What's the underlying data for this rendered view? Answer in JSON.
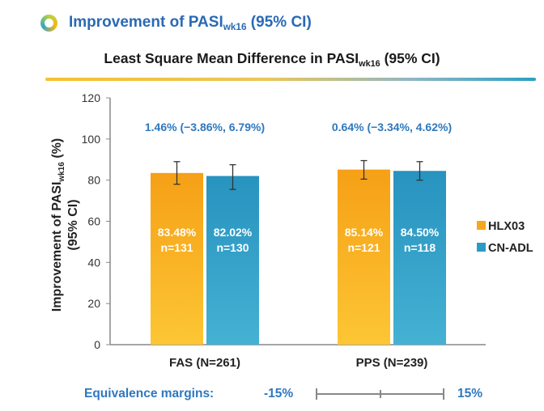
{
  "header": {
    "title_prefix": "Improvement of PASI",
    "title_sub": "wk16",
    "title_suffix": " (95% CI)"
  },
  "chart_data": {
    "type": "bar",
    "title": {
      "prefix": "Least Square Mean Difference in PASI",
      "sub": "wk16",
      "suffix": " (95% CI)"
    },
    "ylabel": {
      "prefix": "Improvement of PASI",
      "sub": "wk16",
      "suffix": " (%)",
      "line2": "(95% CI)"
    },
    "xlabel": "",
    "ylim": [
      0,
      120
    ],
    "yticks": [
      "0",
      "20",
      "40",
      "60",
      "80",
      "100",
      "120"
    ],
    "grid": false,
    "legend_position": "right",
    "categories": [
      "FAS (N=261)",
      "PPS (N=239)"
    ],
    "differences": [
      "1.46% (−3.86%, 6.79%)",
      "0.64% (−3.34%, 4.62%)"
    ],
    "series": [
      {
        "name": "HLX03",
        "color": "#f5a81c",
        "values": [
          83.48,
          85.14
        ],
        "ci_low": [
          78,
          80.5
        ],
        "ci_high": [
          89,
          89.5
        ],
        "value_labels": [
          "83.48%",
          "85.14%"
        ],
        "n_labels": [
          "n=131",
          "n=121"
        ]
      },
      {
        "name": "CN-ADL",
        "color": "#2a9cc4",
        "values": [
          82.02,
          84.5
        ],
        "ci_low": [
          75.5,
          80
        ],
        "ci_high": [
          87.5,
          89
        ],
        "value_labels": [
          "82.02%",
          "84.50%"
        ],
        "n_labels": [
          "n=130",
          "n=118"
        ]
      }
    ]
  },
  "equivalence": {
    "label": "Equivalence margins:",
    "low": "-15%",
    "high": "15%"
  }
}
